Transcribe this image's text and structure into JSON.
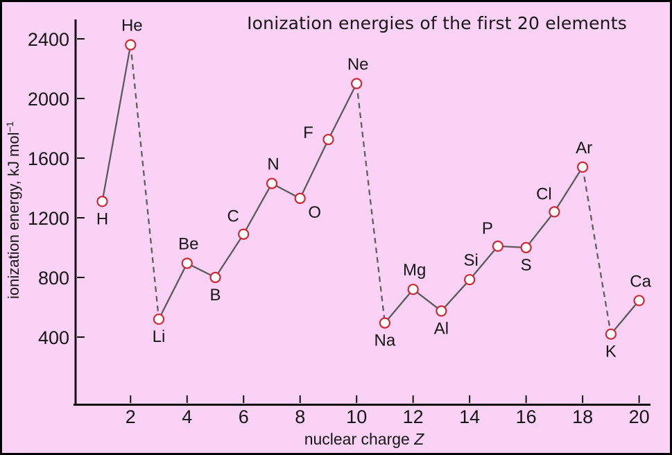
{
  "title": "Ionization energies of the first 20 elements",
  "xlabel_text": "nuclear charge",
  "xlabel_var": "Z",
  "ylabel_main": "ionization energy, kJ mol",
  "ylabel_sup": "−1",
  "colors": {
    "background": "#fad2f6",
    "border": "#000000",
    "axis": "#111111",
    "text": "#161616",
    "line_solid": "#5b5b5b",
    "line_dashed": "#5e5e5e",
    "marker_fill": "#ffffff",
    "marker_stroke": "#cf2733"
  },
  "chart_data": {
    "type": "line",
    "title": "Ionization energies of the first 20 elements",
    "xlabel": "nuclear charge Z",
    "ylabel": "ionization energy, kJ mol⁻¹",
    "xlim": [
      0,
      20.5
    ],
    "ylim": [
      0,
      2500
    ],
    "x_ticks": [
      2,
      4,
      6,
      8,
      10,
      12,
      14,
      16,
      18,
      20
    ],
    "y_ticks": [
      400,
      800,
      1200,
      1600,
      2000,
      2400
    ],
    "grid": "off",
    "legend": "none",
    "points": [
      {
        "element": "H",
        "z": 1,
        "value": 1310,
        "label_pos": "below"
      },
      {
        "element": "He",
        "z": 2,
        "value": 2360,
        "label_pos": "above"
      },
      {
        "element": "Li",
        "z": 3,
        "value": 520,
        "label_pos": "below"
      },
      {
        "element": "Be",
        "z": 4,
        "value": 895,
        "label_pos": "above"
      },
      {
        "element": "B",
        "z": 5,
        "value": 800,
        "label_pos": "below"
      },
      {
        "element": "C",
        "z": 6,
        "value": 1090,
        "label_pos": "above-left"
      },
      {
        "element": "N",
        "z": 7,
        "value": 1430,
        "label_pos": "above"
      },
      {
        "element": "O",
        "z": 8,
        "value": 1330,
        "label_pos": "below-right"
      },
      {
        "element": "F",
        "z": 9,
        "value": 1725,
        "label_pos": "left"
      },
      {
        "element": "Ne",
        "z": 10,
        "value": 2100,
        "label_pos": "above"
      },
      {
        "element": "Na",
        "z": 11,
        "value": 495,
        "label_pos": "below"
      },
      {
        "element": "Mg",
        "z": 12,
        "value": 720,
        "label_pos": "above"
      },
      {
        "element": "Al",
        "z": 13,
        "value": 575,
        "label_pos": "below"
      },
      {
        "element": "Si",
        "z": 14,
        "value": 785,
        "label_pos": "above"
      },
      {
        "element": "P",
        "z": 15,
        "value": 1010,
        "label_pos": "above-left"
      },
      {
        "element": "S",
        "z": 16,
        "value": 1000,
        "label_pos": "below"
      },
      {
        "element": "Cl",
        "z": 17,
        "value": 1240,
        "label_pos": "above-left"
      },
      {
        "element": "Ar",
        "z": 18,
        "value": 1540,
        "label_pos": "above"
      },
      {
        "element": "K",
        "z": 19,
        "value": 420,
        "label_pos": "below"
      },
      {
        "element": "Ca",
        "z": 20,
        "value": 645,
        "label_pos": "above"
      }
    ],
    "connections": {
      "solid_period_ranges": [
        [
          1,
          2
        ],
        [
          3,
          10
        ],
        [
          11,
          18
        ],
        [
          19,
          20
        ]
      ],
      "dashed_pairs": [
        [
          2,
          3
        ],
        [
          10,
          11
        ],
        [
          18,
          19
        ]
      ]
    }
  }
}
